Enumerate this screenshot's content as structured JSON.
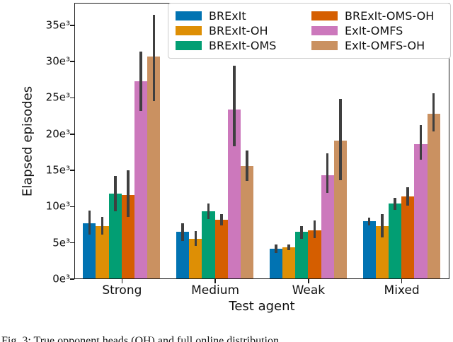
{
  "figure": {
    "caption_partial": "Fig. 3: True opponent heads (OH) and full online distribution"
  },
  "chart_data": {
    "type": "bar",
    "title": "",
    "xlabel": "Test agent",
    "ylabel": "Elapsed episodes",
    "categories": [
      "Strong",
      "Medium",
      "Weak",
      "Mixed"
    ],
    "value_unit": "thousand episodes (e3)",
    "ylim": [
      0,
      37.8
    ],
    "yticks": [
      {
        "value": 0,
        "label": "0e³"
      },
      {
        "value": 5,
        "label": "5e³"
      },
      {
        "value": 10,
        "label": "10e³"
      },
      {
        "value": 15,
        "label": "15e³"
      },
      {
        "value": 20,
        "label": "20e³"
      },
      {
        "value": 25,
        "label": "25e³"
      },
      {
        "value": 30,
        "label": "30e³"
      },
      {
        "value": 35,
        "label": "35e³"
      }
    ],
    "grid": false,
    "legend_position": "upper right, 2 columns, column-major",
    "error_bar_color": "#3f3f3f",
    "series": [
      {
        "name": "BRExIt",
        "color": "#0173b2",
        "values": [
          7.6,
          6.4,
          4.1,
          7.9
        ],
        "err_low": [
          6.0,
          5.2,
          3.5,
          7.3
        ],
        "err_high": [
          9.4,
          7.6,
          4.7,
          8.4
        ]
      },
      {
        "name": "BRExIt-OH",
        "color": "#de8f05",
        "values": [
          7.2,
          5.5,
          4.3,
          7.2
        ],
        "err_low": [
          6.0,
          4.5,
          3.9,
          5.7
        ],
        "err_high": [
          8.5,
          6.5,
          4.7,
          8.9
        ]
      },
      {
        "name": "BRExIt-OMS",
        "color": "#029e73",
        "values": [
          11.7,
          9.3,
          6.4,
          10.3
        ],
        "err_low": [
          9.3,
          8.2,
          5.5,
          9.5
        ],
        "err_high": [
          14.1,
          10.3,
          7.2,
          11.1
        ]
      },
      {
        "name": "BRExIt-OMS-OH",
        "color": "#d55e00",
        "values": [
          11.5,
          8.1,
          6.6,
          11.3
        ],
        "err_low": [
          8.5,
          7.3,
          5.6,
          10.0
        ],
        "err_high": [
          14.9,
          8.9,
          8.0,
          12.6
        ]
      },
      {
        "name": "ExIt-OMFS",
        "color": "#cc78bc",
        "values": [
          27.2,
          23.3,
          14.2,
          18.5
        ],
        "err_low": [
          23.1,
          18.2,
          11.8,
          16.4
        ],
        "err_high": [
          31.3,
          29.3,
          17.2,
          21.1
        ]
      },
      {
        "name": "ExIt-OMFS-OH",
        "color": "#ca9161",
        "values": [
          30.6,
          15.5,
          19.0,
          22.7
        ],
        "err_low": [
          24.5,
          13.4,
          13.5,
          20.3
        ],
        "err_high": [
          36.3,
          17.6,
          24.7,
          25.5
        ]
      }
    ]
  }
}
